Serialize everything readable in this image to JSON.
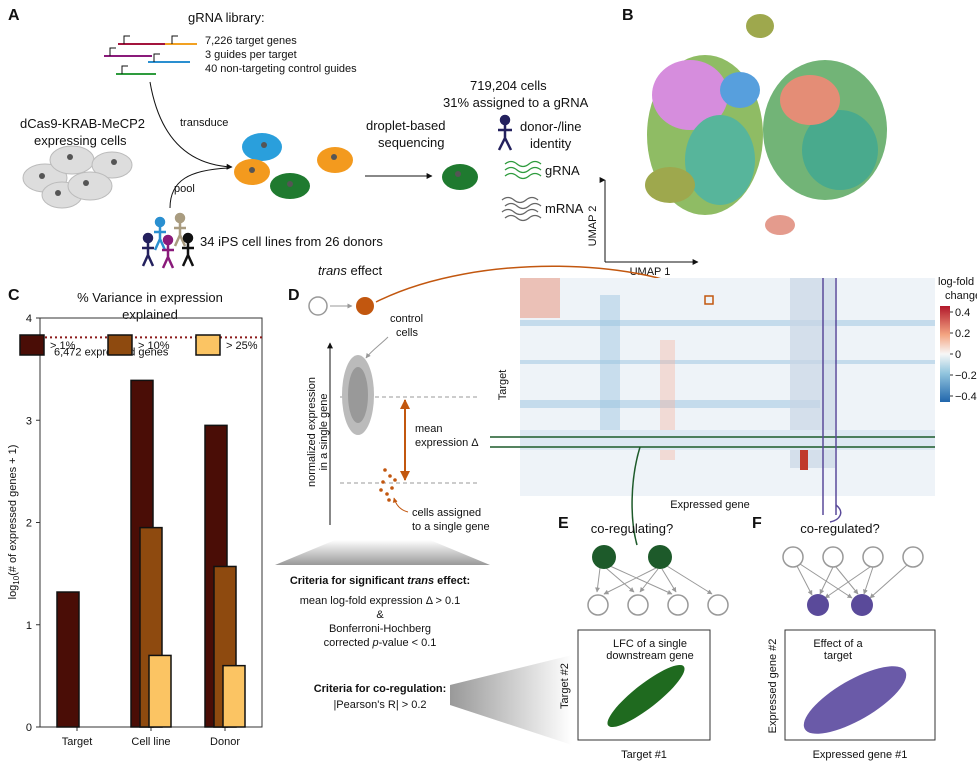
{
  "panel_a": {
    "letter": "A",
    "library_title": "gRNA library:",
    "library_lines": [
      "7,226 target genes",
      "3 guides per target",
      "40 non-targeting control guides"
    ],
    "cells_label": [
      "dCas9-KRAB-MeCP2",
      "expressing cells"
    ],
    "transduce": "transduce",
    "pool": "pool",
    "donors": "34 iPS cell lines from 26 donors",
    "sequencing": [
      "droplet-based",
      "sequencing"
    ],
    "cells_count": "719,204 cells",
    "assigned": "31% assigned to a gRNA",
    "identity": [
      "donor-/line",
      "identity"
    ],
    "grna": "gRNA",
    "mrna": "mRNA"
  },
  "panel_b": {
    "letter": "B",
    "y_label": "UMAP 2",
    "x_label": "UMAP 1"
  },
  "panel_c": {
    "letter": "C"
  },
  "chart_data": {
    "type": "bar",
    "title": [
      "% Variance in expression",
      "explained"
    ],
    "categories": [
      "Target",
      "Cell line",
      "Donor"
    ],
    "series": [
      {
        "name": "> 1%",
        "color": "#4a0d06",
        "values": [
          1.32,
          3.39,
          2.95
        ]
      },
      {
        "name": "> 10%",
        "color": "#8e4a0f",
        "values": [
          0,
          1.95,
          1.57
        ]
      },
      {
        "name": "> 25%",
        "color": "#fbc463",
        "values": [
          null,
          0.7,
          0.6
        ]
      }
    ],
    "y_label": [
      "log",
      "10",
      "(# of expressed genes + 1)"
    ],
    "ylim": [
      0,
      4
    ],
    "yticks": [
      0,
      1,
      2,
      3,
      4
    ],
    "hline": 3.81,
    "hline_label": "6,472 expressed genes"
  },
  "panel_d": {
    "letter": "D",
    "trans_effect": [
      "trans",
      " effect"
    ],
    "control": [
      "control",
      "cells"
    ],
    "y_axis": [
      "normalized expression",
      "in a single gene"
    ],
    "mean": [
      "mean",
      "expression Δ"
    ],
    "assigned": [
      "cells assigned",
      "to a single gene"
    ],
    "heat_y": "Target",
    "heat_x": "Expressed gene",
    "colorbar_title": [
      "log-fold",
      "change"
    ],
    "colorbar_ticks": [
      0.4,
      0.2,
      0,
      {
        "value": -0.2,
        "label": "−0.2"
      },
      {
        "value": -0.4,
        "label": "−0.4"
      }
    ],
    "criteria_trans": [
      "Criteria for significant ",
      "trans",
      " effect:"
    ],
    "criteria_lines": [
      "mean log-fold expression Δ > 0.1",
      "&",
      "Bonferroni-Hochberg"
    ],
    "corrected": [
      "corrected ",
      "p",
      "-value < 0.1"
    ],
    "criteria_co": "Criteria for co-regulation:",
    "pearson": "|Pearson's R| > 0.2"
  },
  "panel_e": {
    "letter": "E",
    "title": "co-regulating?",
    "note": [
      "LFC of a single",
      "downstream gene"
    ],
    "y_label": "Target #2",
    "x_label": "Target #1"
  },
  "panel_f": {
    "letter": "F",
    "title": "co-regulated?",
    "note": [
      "Effect of a",
      "target"
    ],
    "y_label": "Expressed gene #2",
    "x_label": "Expressed gene #1"
  }
}
